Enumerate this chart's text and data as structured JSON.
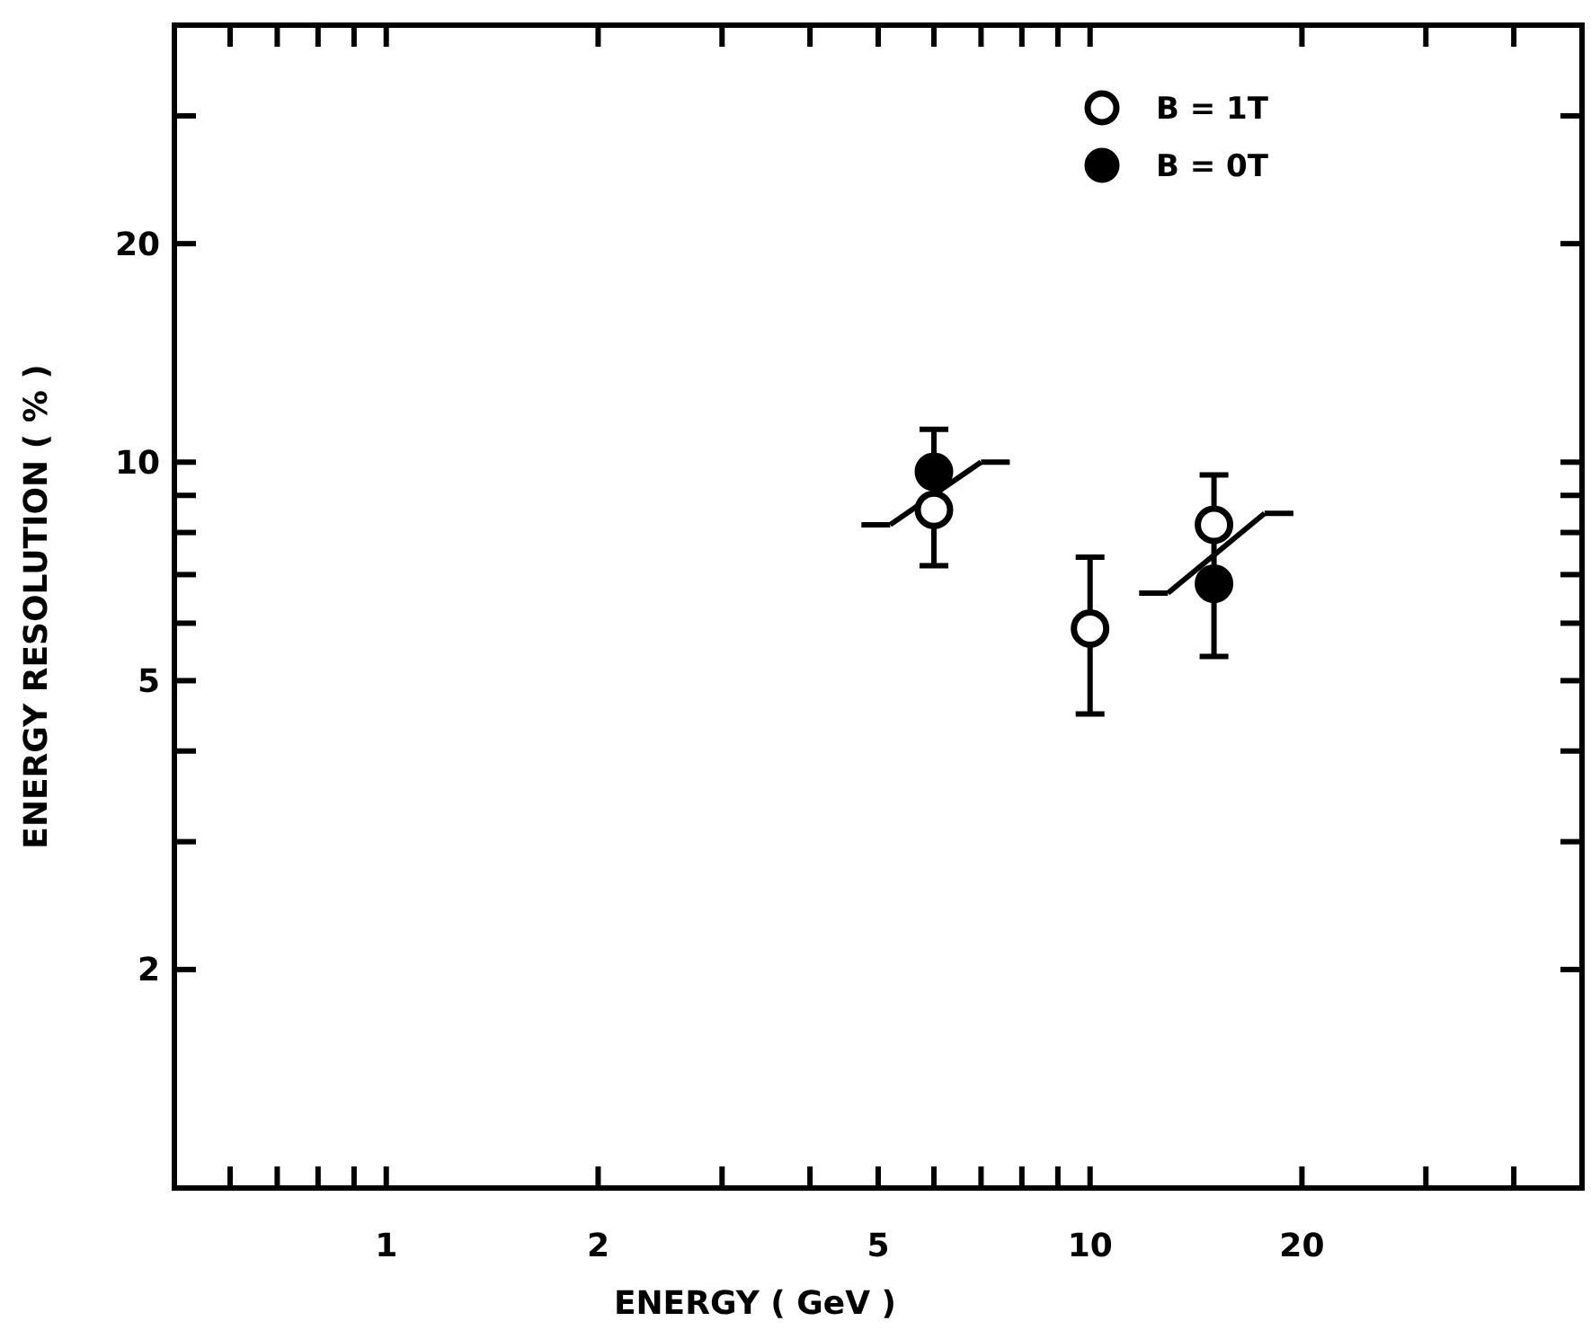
{
  "chart_data": {
    "type": "scatter",
    "xlabel": "ENERGY  ( GeV )",
    "ylabel": "ENERGY RESOLUTION  ( % )",
    "log": "xy",
    "xlim": [
      0.5,
      50
    ],
    "ylim": [
      1,
      40
    ],
    "xticks": [
      {
        "value": 0.6,
        "label": null
      },
      {
        "value": 0.7,
        "label": null
      },
      {
        "value": 0.8,
        "label": null
      },
      {
        "value": 0.9,
        "label": null
      },
      1,
      2,
      {
        "value": 3,
        "label": null
      },
      {
        "value": 4,
        "label": null
      },
      5,
      {
        "value": 6,
        "label": null
      },
      {
        "value": 7,
        "label": null
      },
      {
        "value": 8,
        "label": null
      },
      {
        "value": 9,
        "label": null
      },
      10,
      20,
      {
        "value": 30,
        "label": null
      },
      {
        "value": 40,
        "label": null
      }
    ],
    "yticks": [
      2,
      {
        "value": 3,
        "label": null
      },
      {
        "value": 4,
        "label": null
      },
      5,
      {
        "value": 6,
        "label": null
      },
      {
        "value": 7,
        "label": null
      },
      {
        "value": 8,
        "label": null
      },
      {
        "value": 9,
        "label": null
      },
      10,
      20,
      {
        "value": 30,
        "label": null
      }
    ],
    "grid": false,
    "legend": "top right",
    "marker": "circle",
    "series": [
      {
        "name": "B = 1T",
        "color": "#ffffff",
        "x": [
          6,
          10,
          15
        ],
        "values": [
          8.6,
          5.9,
          8.2
        ],
        "errors": [
          [
            7.2,
            11.1
          ],
          [
            4.5,
            7.4
          ],
          [
            5.4,
            9.6
          ]
        ]
      },
      {
        "name": "B = 0T",
        "color": "#000000",
        "x": [
          6,
          15
        ],
        "values": [
          9.7,
          6.8
        ]
      },
      {
        "type": "line",
        "color": "#000000",
        "marker": "none",
        "x": [
          5.2,
          7.0
        ],
        "values": [
          8.2,
          10.0
        ]
      },
      {
        "type": "line",
        "color": "#000000",
        "marker": "none",
        "x": [
          12.9,
          17.7
        ],
        "values": [
          6.6,
          8.5
        ]
      }
    ]
  }
}
